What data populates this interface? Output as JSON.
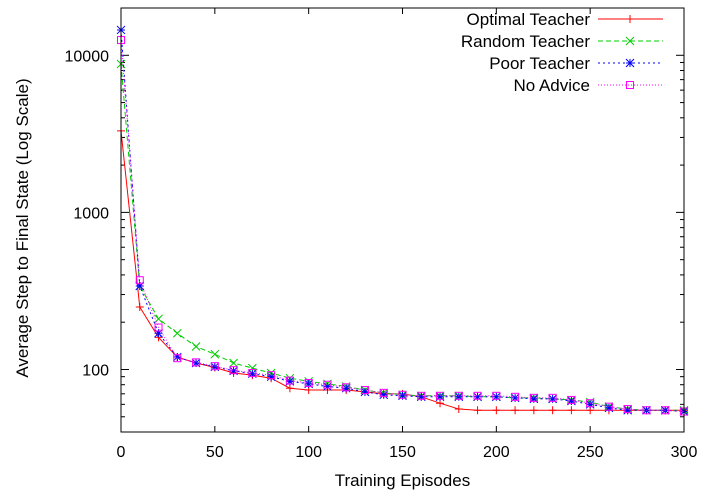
{
  "chart_data": {
    "type": "line",
    "xlabel": "Training Episodes",
    "ylabel": "Average Step to Final State (Log Scale)",
    "x_ticks": [
      0,
      50,
      100,
      150,
      200,
      250,
      300
    ],
    "y_ticks": [
      100,
      1000,
      10000
    ],
    "xlim": [
      0,
      300
    ],
    "ylim": [
      40,
      20000
    ],
    "y_scale": "log",
    "legend_position": "top-right",
    "x": [
      0,
      10,
      20,
      30,
      40,
      50,
      60,
      70,
      80,
      90,
      100,
      110,
      120,
      130,
      140,
      150,
      160,
      170,
      180,
      190,
      200,
      210,
      220,
      230,
      240,
      250,
      260,
      270,
      280,
      290,
      300
    ],
    "series": [
      {
        "name": "Optimal Teacher",
        "color": "#ff0000",
        "marker": "plus",
        "dash": "",
        "values": [
          3300,
          250,
          160,
          120,
          110,
          103,
          95,
          92,
          88,
          76,
          74,
          74,
          74,
          72,
          70,
          70,
          67,
          61,
          56,
          55,
          55,
          55,
          55,
          55,
          55,
          55,
          55,
          55,
          55,
          55,
          55
        ]
      },
      {
        "name": "Random Teacher",
        "color": "#00cc00",
        "marker": "x",
        "dash": "5,3",
        "values": [
          8800,
          340,
          210,
          170,
          140,
          125,
          110,
          102,
          95,
          88,
          84,
          81,
          78,
          74,
          71,
          69,
          68,
          68,
          68,
          67,
          67,
          66,
          66,
          65,
          64,
          62,
          58,
          56,
          55,
          55,
          55
        ]
      },
      {
        "name": "Poor Teacher",
        "color": "#0000ff",
        "marker": "star",
        "dash": "2,3",
        "values": [
          14500,
          340,
          170,
          120,
          110,
          104,
          98,
          94,
          90,
          84,
          81,
          78,
          76,
          72,
          69,
          68,
          67,
          67,
          67,
          67,
          67,
          66,
          65,
          65,
          63,
          60,
          57,
          55,
          55,
          55,
          54
        ]
      },
      {
        "name": "No Advice",
        "color": "#ff00ff",
        "marker": "square",
        "dash": "1,2",
        "values": [
          12500,
          370,
          185,
          118,
          111,
          105,
          99,
          95,
          92,
          85,
          82,
          80,
          77,
          74,
          71,
          69,
          68,
          68,
          68,
          68,
          68,
          67,
          66,
          66,
          64,
          61,
          58,
          56,
          55,
          55,
          54
        ]
      }
    ]
  }
}
